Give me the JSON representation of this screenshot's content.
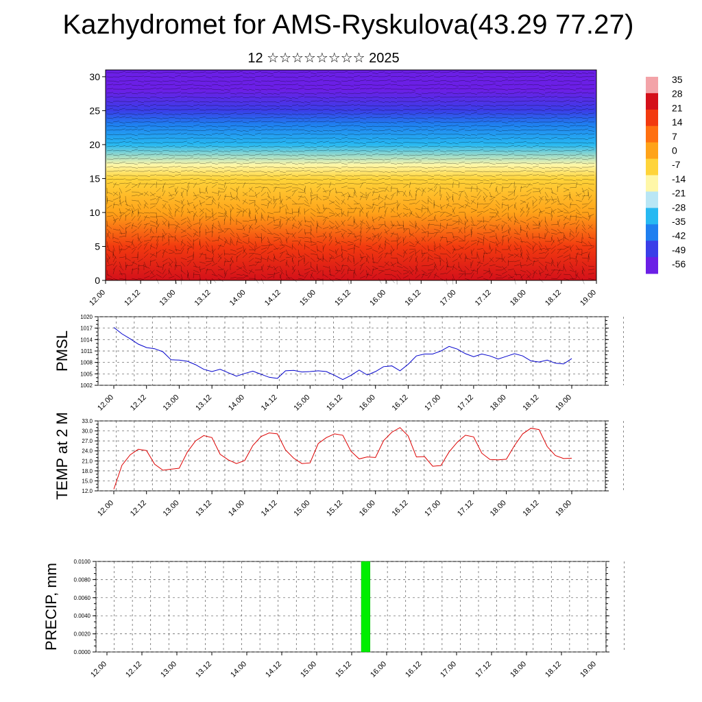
{
  "title": "Kazhydromet for AMS-Ryskulova(43.29 77.27)",
  "subtitle": "12 ☆☆☆☆☆☆☆☆ 2025",
  "chart_data": [
    {
      "type": "heatmap",
      "panel": "cross-section",
      "x_ticks": [
        "12.00",
        "12.12",
        "13.00",
        "13.12",
        "14.00",
        "14.12",
        "15.00",
        "15.12",
        "16.00",
        "16.12",
        "17.00",
        "17.12",
        "18.00",
        "18.12",
        "19.00"
      ],
      "y_ticks": [
        0,
        5,
        10,
        15,
        20,
        25,
        30
      ],
      "ylim": [
        0,
        31
      ],
      "colorbar_ticks": [
        "35",
        "28",
        "21",
        "14",
        "7",
        "0",
        "-7",
        "-14",
        "-21",
        "-28",
        "-35",
        "-42",
        "-49",
        "-56"
      ],
      "colorbar_range": [
        -60,
        38
      ],
      "colors": [
        "#6b1fe6",
        "#3a3ee8",
        "#1f7ff0",
        "#27b9f2",
        "#b9e6f5",
        "#fff7a8",
        "#ffd43a",
        "#ffa319",
        "#ff7010",
        "#f23a0f",
        "#d4101a",
        "#f3a3a8"
      ],
      "field_profile": [
        {
          "z": 0,
          "value": 30
        },
        {
          "z": 5,
          "value": 20
        },
        {
          "z": 10,
          "value": 2
        },
        {
          "z": 15,
          "value": -8
        },
        {
          "z": 17,
          "value": -16
        },
        {
          "z": 20,
          "value": -30
        },
        {
          "z": 23,
          "value": -45
        },
        {
          "z": 25,
          "value": -55
        },
        {
          "z": 28,
          "value": -58
        },
        {
          "z": 31,
          "value": -60
        }
      ]
    },
    {
      "type": "line",
      "ylabel": "PMSL",
      "x_ticks": [
        "12.00",
        "12.12",
        "13.00",
        "13.12",
        "14.00",
        "14.12",
        "15.00",
        "15.12",
        "16.00",
        "16.12",
        "17.00",
        "17.12",
        "18.00",
        "18.12",
        "19.00"
      ],
      "y_ticks": [
        "1002",
        "1005",
        "1008",
        "1011",
        "1014",
        "1017",
        "1020"
      ],
      "ylim": [
        1002,
        1020
      ],
      "line_color": "#0000cc",
      "values": [
        1017.2,
        1015.5,
        1014.2,
        1012.8,
        1011.9,
        1011.6,
        1010.8,
        1008.7,
        1008.6,
        1008.3,
        1007.4,
        1006.2,
        1005.6,
        1006.2,
        1005.3,
        1004.4,
        1005.1,
        1005.7,
        1004.9,
        1004.1,
        1003.8,
        1005.8,
        1005.9,
        1005.5,
        1005.6,
        1005.8,
        1005.6,
        1004.6,
        1003.5,
        1004.6,
        1006.0,
        1004.7,
        1005.6,
        1006.9,
        1007.1,
        1005.8,
        1007.5,
        1009.7,
        1010.2,
        1010.2,
        1011.0,
        1012.2,
        1011.5,
        1010.3,
        1009.5,
        1010.2,
        1009.7,
        1008.9,
        1009.6,
        1010.3,
        1009.7,
        1008.4,
        1008.1,
        1008.6,
        1007.8,
        1007.6,
        1009.0
      ]
    },
    {
      "type": "line",
      "ylabel": "TEMP at 2 M",
      "x_ticks": [
        "12.00",
        "12.12",
        "13.00",
        "13.12",
        "14.00",
        "14.12",
        "15.00",
        "15.12",
        "16.00",
        "16.12",
        "17.00",
        "17.12",
        "18.00",
        "18.12",
        "19.00"
      ],
      "y_ticks": [
        "12.0",
        "15.0",
        "18.0",
        "21.0",
        "24.0",
        "27.0",
        "30.0",
        "33.0"
      ],
      "ylim": [
        12,
        33
      ],
      "line_color": "#dd0000",
      "values": [
        12.5,
        19.7,
        22.8,
        24.5,
        24.1,
        20.0,
        18.2,
        18.5,
        18.8,
        23.7,
        27.0,
        28.6,
        28.0,
        23.0,
        21.3,
        20.2,
        21.1,
        25.6,
        28.3,
        29.4,
        29.1,
        24.3,
        21.8,
        20.2,
        20.4,
        26.2,
        28.0,
        29.1,
        28.7,
        23.9,
        21.6,
        22.2,
        22.0,
        27.1,
        29.6,
        31.0,
        28.5,
        22.2,
        22.3,
        19.4,
        19.6,
        23.7,
        26.6,
        28.7,
        28.2,
        23.3,
        21.4,
        21.3,
        21.5,
        25.6,
        29.1,
        30.8,
        30.4,
        25.3,
        22.6,
        21.7,
        21.8
      ]
    },
    {
      "type": "bar",
      "ylabel": "PRECIP, mm",
      "x_ticks": [
        "12.00",
        "12.12",
        "13.00",
        "13.12",
        "14.00",
        "14.12",
        "15.00",
        "15.12",
        "16.00",
        "16.12",
        "17.00",
        "17.12",
        "18.00",
        "18.12",
        "19.00"
      ],
      "y_ticks": [
        "0.0000",
        "0.0020",
        "0.0040",
        "0.0060",
        "0.0080",
        "0.0100"
      ],
      "ylim": [
        0,
        0.01
      ],
      "bar_color": "#00ee00",
      "bars": [
        {
          "x": 7.4,
          "width": 0.25,
          "value": 0.01
        }
      ]
    }
  ]
}
